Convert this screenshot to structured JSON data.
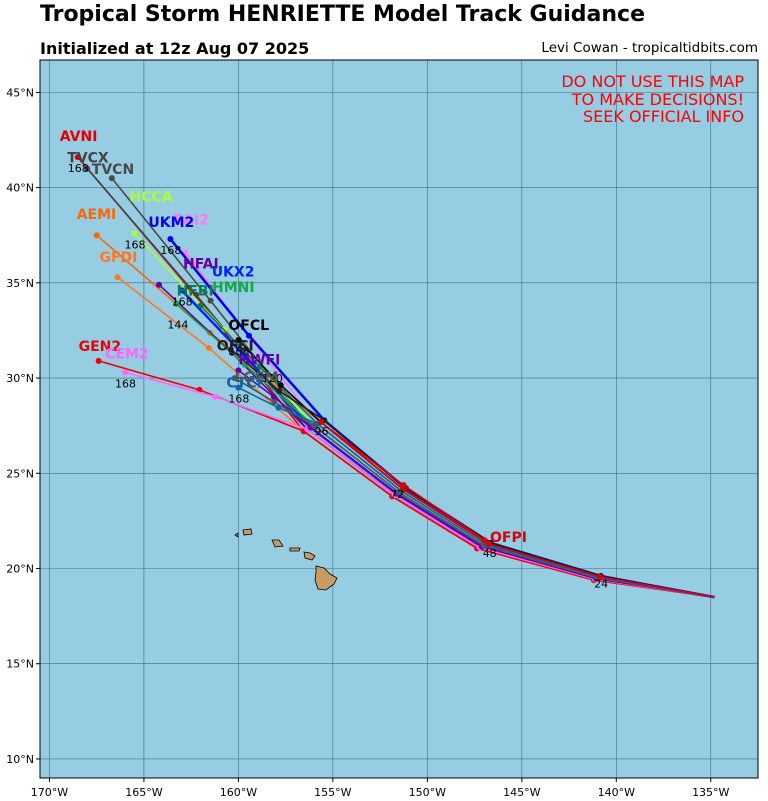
{
  "header": {
    "title": "Tropical Storm HENRIETTE Model Track Guidance",
    "subtitle": "Initialized at 12z Aug 07 2025",
    "credit": "Levi Cowan - tropicaltidbits.com"
  },
  "warning": [
    "DO NOT USE THIS MAP",
    "TO MAKE DECISIONS!",
    "SEEK OFFICIAL INFO"
  ],
  "colors": {
    "ocean": "#96cde3",
    "land": "#c89b64",
    "grid": "#3c6e82",
    "warning": "#ff0000"
  },
  "map_data": {
    "lon_range": [
      -170.5,
      -132.5
    ],
    "lat_range": [
      9.0,
      46.7
    ],
    "lon_ticks": [
      {
        "v": -170,
        "label": "170°W"
      },
      {
        "v": -165,
        "label": "165°W"
      },
      {
        "v": -160,
        "label": "160°W"
      },
      {
        "v": -155,
        "label": "155°W"
      },
      {
        "v": -150,
        "label": "150°W"
      },
      {
        "v": -145,
        "label": "145°W"
      },
      {
        "v": -140,
        "label": "140°W"
      },
      {
        "v": -135,
        "label": "135°W"
      }
    ],
    "lat_ticks": [
      {
        "v": 10,
        "label": "10°N"
      },
      {
        "v": 15,
        "label": "15°N"
      },
      {
        "v": 20,
        "label": "20°N"
      },
      {
        "v": 25,
        "label": "25°N"
      },
      {
        "v": 30,
        "label": "30°N"
      },
      {
        "v": 35,
        "label": "35°N"
      },
      {
        "v": 40,
        "label": "40°N"
      },
      {
        "v": 45,
        "label": "45°N"
      }
    ],
    "tracks": [
      {
        "model": "AVNI",
        "color": "#e00000",
        "end_lon": -168.5,
        "end_lat": 41.6,
        "lbl_dx": -18,
        "lbl_dy": -16
      },
      {
        "model": "TVCX",
        "color": "#444444",
        "end_lon": -168.0,
        "end_lat": 41.0,
        "lbl_dx": -20,
        "lbl_dy": -6
      },
      {
        "model": "TVCN",
        "color": "#4a4a4a",
        "end_lon": -166.7,
        "end_lat": 40.5,
        "lbl_dx": -20,
        "lbl_dy": -4
      },
      {
        "model": "HCCA",
        "color": "#aaff33",
        "end_lon": -165.5,
        "end_lat": 37.6,
        "lbl_dx": -5,
        "lbl_dy": -32
      },
      {
        "model": "EAI2",
        "color": "#ff77ff",
        "end_lon": -162.8,
        "end_lat": 36.6,
        "lbl_dx": -12,
        "lbl_dy": -28
      },
      {
        "model": "AEMI",
        "color": "#ff6600",
        "end_lon": -167.5,
        "end_lat": 37.5,
        "lbl_dx": -20,
        "lbl_dy": -16
      },
      {
        "model": "UKM2",
        "color": "#0000ee",
        "end_lon": -163.6,
        "end_lat": 37.3,
        "lbl_dx": -22,
        "lbl_dy": -12
      },
      {
        "model": "GFDI",
        "color": "#ff7722",
        "end_lon": -166.4,
        "end_lat": 35.3,
        "lbl_dx": -18,
        "lbl_dy": -15
      },
      {
        "model": "HFAI",
        "color": "#660099",
        "end_lon": -164.2,
        "end_lat": 34.9,
        "lbl_dx": 24,
        "lbl_dy": -16
      },
      {
        "model": "UKX2",
        "color": "#0022ff",
        "end_lon": -163.0,
        "end_lat": 34.6,
        "lbl_dx": 30,
        "lbl_dy": -14
      },
      {
        "model": "HMNI",
        "color": "#11aa44",
        "end_lon": -163.3,
        "end_lat": 33.9,
        "lbl_dx": 36,
        "lbl_dy": -12
      },
      {
        "model": "HFBI",
        "color": "#0a7a55",
        "end_lon": -162.0,
        "end_lat": 33.8,
        "lbl_dx": -24,
        "lbl_dy": -10
      },
      {
        "model": "OFCL",
        "color": "#000000",
        "end_lon": -160.0,
        "end_lat": 32.0,
        "lbl_dx": -10,
        "lbl_dy": -10
      },
      {
        "model": "OFCI",
        "color": "#222222",
        "end_lon": -160.4,
        "end_lat": 31.5,
        "lbl_dx": -14,
        "lbl_dy": 1
      },
      {
        "model": "GEN2",
        "color": "#ee0000",
        "end_lon": -167.4,
        "end_lat": 30.9,
        "lbl_dx": -20,
        "lbl_dy": -10
      },
      {
        "model": "CEM2",
        "color": "#ff66ff",
        "end_lon": -166.0,
        "end_lat": 30.3,
        "lbl_dx": -20,
        "lbl_dy": -14
      },
      {
        "model": "HWFI",
        "color": "#6600aa",
        "end_lon": -160.0,
        "end_lat": 30.4,
        "lbl_dx": 0,
        "lbl_dy": -6
      },
      {
        "model": "LGEM",
        "color": "#555555",
        "end_lon": -160.2,
        "end_lat": 30.0,
        "lbl_dx": 0,
        "lbl_dy": 4
      },
      {
        "model": "CTCI",
        "color": "#1166aa",
        "end_lon": -160.0,
        "end_lat": 29.5,
        "lbl_dx": -12,
        "lbl_dy": 0
      },
      {
        "model": "OFPI",
        "color": "#dd0000",
        "end_lon": -147.0,
        "end_lat": 21.5,
        "lbl_dx": 6,
        "lbl_dy": 2
      }
    ],
    "hour_labels": [
      "168",
      "144",
      "120",
      "96",
      "72",
      "48",
      "24"
    ]
  }
}
